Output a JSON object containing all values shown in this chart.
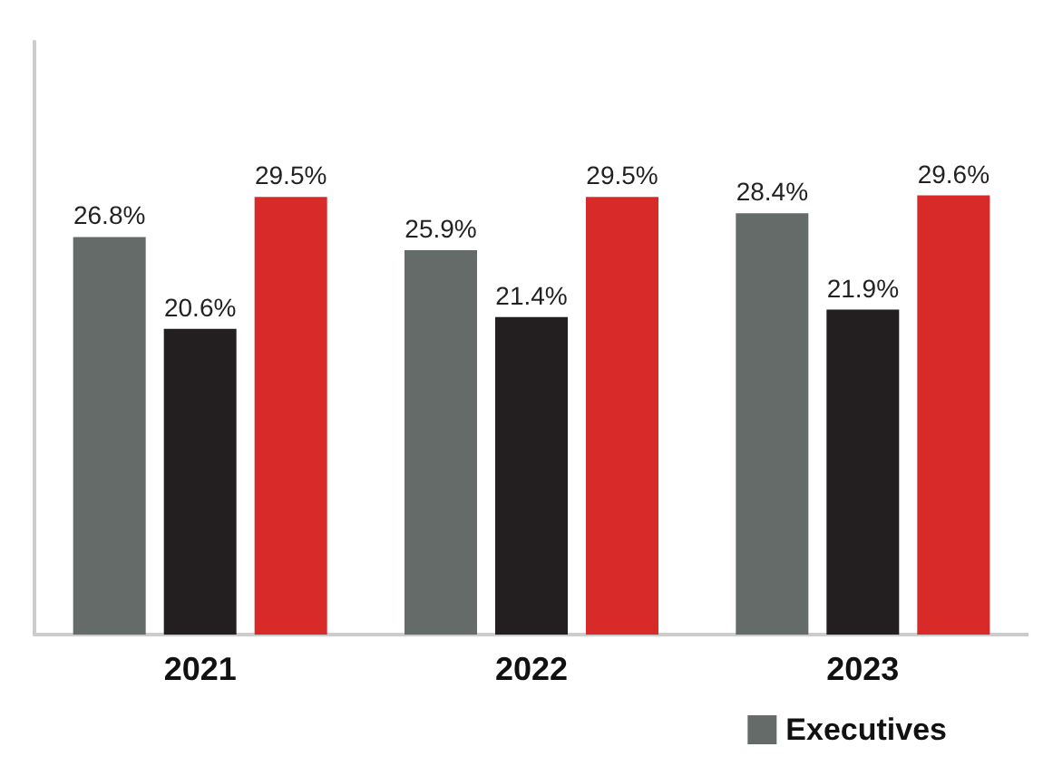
{
  "chart_data": {
    "type": "bar",
    "categories": [
      "2021",
      "2022",
      "2023"
    ],
    "series": [
      {
        "name": "Executives",
        "color": "#646b68",
        "values": [
          26.8,
          25.9,
          28.4
        ],
        "value_labels": [
          "26.8%",
          "25.9%",
          "28.4%"
        ]
      },
      {
        "color": "#231f20",
        "values": [
          20.6,
          21.4,
          21.9
        ],
        "value_labels": [
          "20.6%",
          "21.4%",
          "21.9%"
        ]
      },
      {
        "color": "#d92a2a",
        "values": [
          29.5,
          29.5,
          29.6
        ],
        "value_labels": [
          "29.5%",
          "29.5%",
          "29.6%"
        ]
      }
    ],
    "legend": "bottom right",
    "grid": false,
    "tick_labels": "x"
  }
}
